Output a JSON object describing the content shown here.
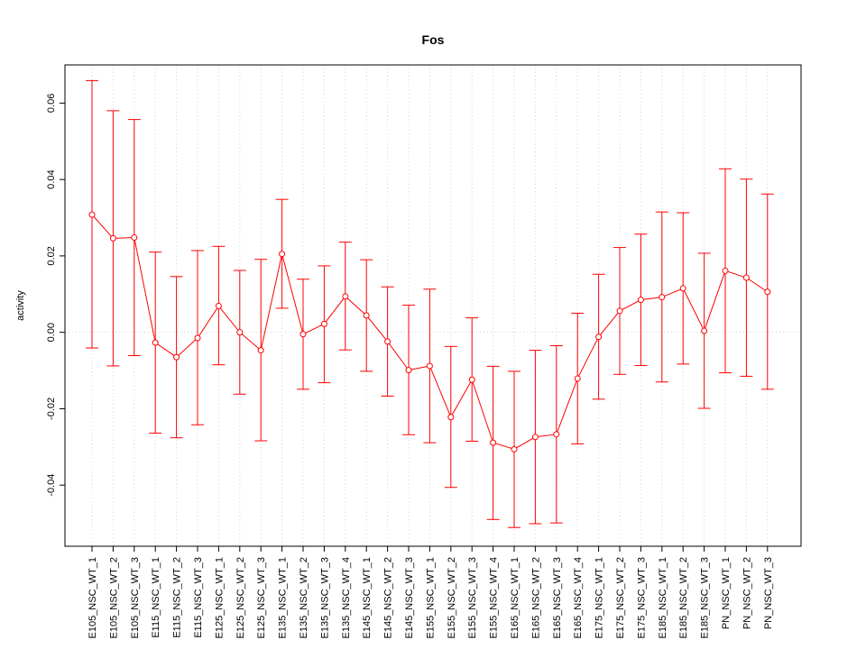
{
  "chart_data": {
    "type": "line",
    "title": "Fos",
    "xlabel": "",
    "ylabel": "activity",
    "ylim": [
      -0.056,
      0.07
    ],
    "yticks": [
      -0.04,
      -0.02,
      0.0,
      0.02,
      0.04,
      0.06
    ],
    "ytick_labels": [
      "-0.04",
      "-0.02",
      "0.00",
      "0.02",
      "0.04",
      "0.06"
    ],
    "grid": true,
    "categories": [
      "E105_NSC_WT_1",
      "E105_NSC_WT_2",
      "E105_NSC_WT_3",
      "E115_NSC_WT_1",
      "E115_NSC_WT_2",
      "E115_NSC_WT_3",
      "E125_NSC_WT_1",
      "E125_NSC_WT_2",
      "E125_NSC_WT_3",
      "E135_NSC_WT_1",
      "E135_NSC_WT_2",
      "E135_NSC_WT_3",
      "E135_NSC_WT_4",
      "E145_NSC_WT_1",
      "E145_NSC_WT_2",
      "E145_NSC_WT_3",
      "E155_NSC_WT_1",
      "E155_NSC_WT_2",
      "E155_NSC_WT_3",
      "E155_NSC_WT_4",
      "E165_NSC_WT_1",
      "E165_NSC_WT_2",
      "E165_NSC_WT_3",
      "E165_NSC_WT_4",
      "E175_NSC_WT_1",
      "E175_NSC_WT_2",
      "E175_NSC_WT_3",
      "E185_NSC_WT_1",
      "E185_NSC_WT_2",
      "E185_NSC_WT_3",
      "PN_NSC_WT_1",
      "PN_NSC_WT_2",
      "PN_NSC_WT_3"
    ],
    "series": [
      {
        "values": [
          0.0308,
          0.0246,
          0.0248,
          -0.0027,
          -0.0065,
          -0.0015,
          0.0069,
          0.0,
          -0.0047,
          0.0205,
          -0.0005,
          0.0022,
          0.0094,
          0.0044,
          -0.0024,
          -0.0099,
          -0.0088,
          -0.0222,
          -0.0124,
          -0.0289,
          -0.0306,
          -0.0274,
          -0.0267,
          -0.0121,
          -0.0012,
          0.0056,
          0.0085,
          0.0092,
          0.0115,
          0.0004,
          0.0161,
          0.0143,
          0.0106
        ],
        "upper": [
          0.0659,
          0.058,
          0.0557,
          0.021,
          0.0146,
          0.0214,
          0.0225,
          0.0162,
          0.0191,
          0.0348,
          0.0139,
          0.0174,
          0.0236,
          0.019,
          0.0119,
          0.0071,
          0.0113,
          -0.0037,
          0.0038,
          -0.0089,
          -0.0102,
          -0.0047,
          -0.0035,
          0.005,
          0.0152,
          0.0222,
          0.0257,
          0.0315,
          0.0313,
          0.0207,
          0.0428,
          0.0401,
          0.0362
        ],
        "lower": [
          -0.0041,
          -0.0088,
          -0.0061,
          -0.0264,
          -0.0276,
          -0.0242,
          -0.0085,
          -0.0162,
          -0.0284,
          0.0063,
          -0.0149,
          -0.0132,
          -0.0046,
          -0.0102,
          -0.0167,
          -0.0268,
          -0.0289,
          -0.0406,
          -0.0285,
          -0.049,
          -0.0511,
          -0.0501,
          -0.0499,
          -0.0292,
          -0.0175,
          -0.011,
          -0.0087,
          -0.013,
          -0.0083,
          -0.0199,
          -0.0106,
          -0.0115,
          -0.0149
        ]
      }
    ]
  },
  "colors": {
    "series": "#FF0000",
    "grid": "#D3D3D3",
    "axis": "#000000"
  }
}
